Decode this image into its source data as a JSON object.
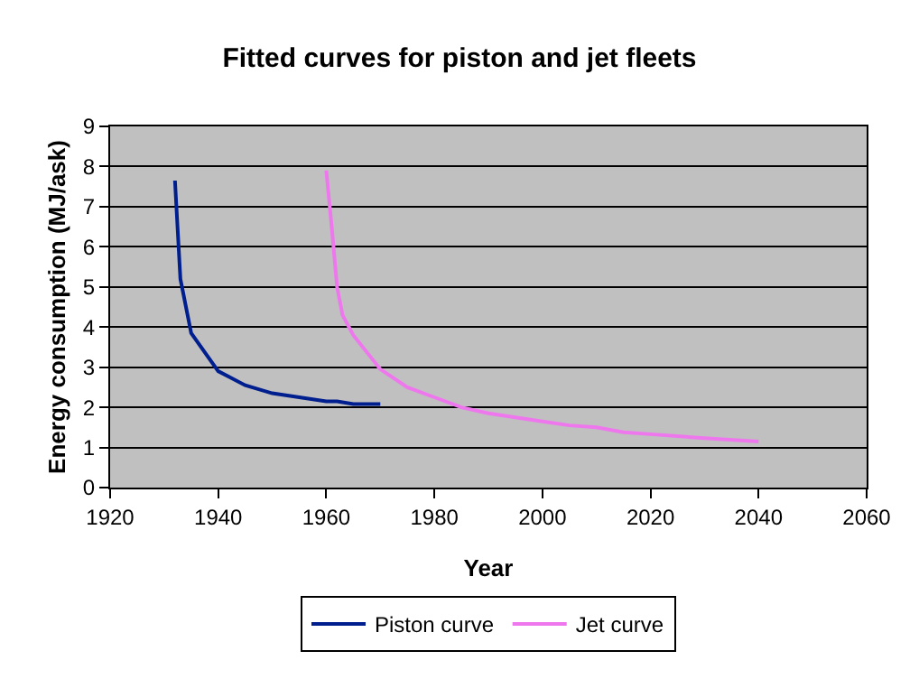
{
  "chart_data": {
    "type": "line",
    "title": "Fitted curves for piston and jet fleets",
    "xlabel": "Year",
    "ylabel": "Energy consumption (MJ/ask)",
    "xlim": [
      1920,
      2060
    ],
    "xticks": [
      1920,
      1940,
      1960,
      1980,
      2000,
      2020,
      2040,
      2060
    ],
    "ylim": [
      0,
      9
    ],
    "yticks": [
      0,
      1,
      2,
      3,
      4,
      5,
      6,
      7,
      8,
      9
    ],
    "grid": "y",
    "legend": "bottom",
    "series": [
      {
        "name": "Piston curve",
        "color": "#001f8f",
        "x": [
          1932,
          1933,
          1935,
          1940,
          1945,
          1950,
          1955,
          1960,
          1962,
          1965,
          1970
        ],
        "values": [
          7.65,
          5.2,
          3.85,
          2.9,
          2.55,
          2.35,
          2.25,
          2.15,
          2.15,
          2.08,
          2.08
        ]
      },
      {
        "name": "Jet curve",
        "color": "#ee77ee",
        "x": [
          1960,
          1961,
          1962,
          1963,
          1965,
          1970,
          1975,
          1980,
          1985,
          1990,
          2000,
          2005,
          2010,
          2015,
          2020,
          2030,
          2040
        ],
        "values": [
          7.9,
          6.5,
          5.0,
          4.3,
          3.8,
          2.95,
          2.5,
          2.25,
          2.0,
          1.85,
          1.65,
          1.55,
          1.5,
          1.38,
          1.33,
          1.23,
          1.15
        ]
      }
    ]
  }
}
